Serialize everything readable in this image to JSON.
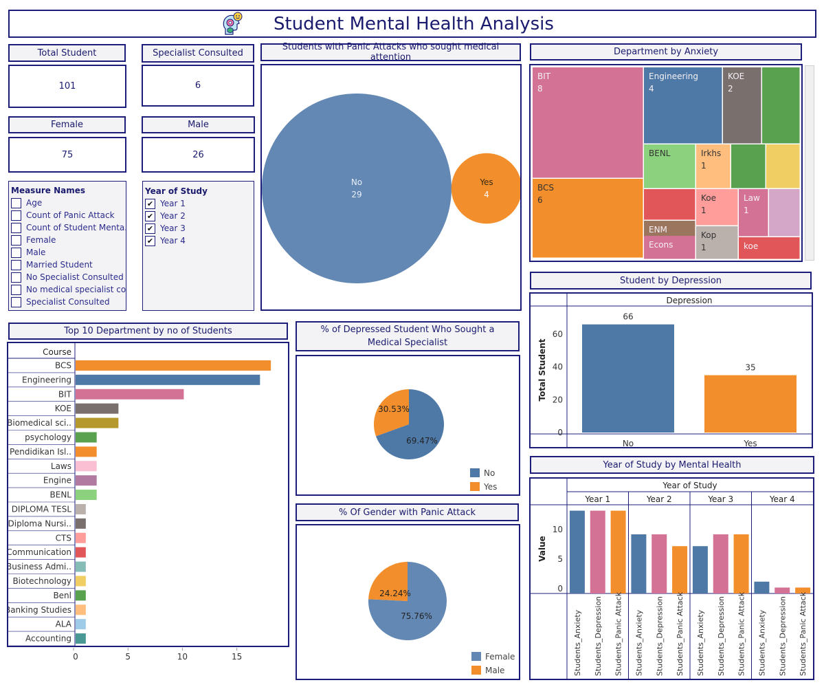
{
  "title": "Student Mental Health Analysis",
  "kpis": {
    "total_student": {
      "label": "Total Student",
      "value": "101"
    },
    "specialist": {
      "label": "Specialist Consulted",
      "value": "6"
    },
    "female": {
      "label": "Female",
      "value": "75"
    },
    "male": {
      "label": "Male",
      "value": "26"
    }
  },
  "measure_filter": {
    "title": "Measure Names",
    "items": [
      {
        "label": "Age",
        "checked": false
      },
      {
        "label": "Count of Panic Attack",
        "checked": false
      },
      {
        "label": "Count of Student Menta..",
        "checked": false
      },
      {
        "label": "Female",
        "checked": false
      },
      {
        "label": "Male",
        "checked": false
      },
      {
        "label": "Married Student",
        "checked": false
      },
      {
        "label": "No Specialist Consulted",
        "checked": false
      },
      {
        "label": "No medical specialist co..",
        "checked": false
      },
      {
        "label": "Specialist Consulted",
        "checked": false
      }
    ]
  },
  "year_filter": {
    "title": "Year of Study",
    "items": [
      {
        "label": "Year 1",
        "checked": true
      },
      {
        "label": "Year 2",
        "checked": true
      },
      {
        "label": "Year 3",
        "checked": true
      },
      {
        "label": "Year 4",
        "checked": true
      }
    ]
  },
  "colors": {
    "blue": "#4e79a7",
    "orange": "#f28e2b",
    "pink": "#d37295",
    "border": "#1c1c7a",
    "title": "#1a1a6e"
  },
  "chart_data": [
    {
      "id": "panic_bubbles",
      "type": "bubble",
      "title": "Students with Panic Attacks who sought medical attention",
      "items": [
        {
          "label": "No",
          "value": 29,
          "color": "#6388b4"
        },
        {
          "label": "Yes",
          "value": 4,
          "color": "#f28e2b"
        }
      ]
    },
    {
      "id": "dept_anxiety",
      "type": "treemap",
      "title": "Department by Anxiety",
      "items": [
        {
          "label": "BIT",
          "value": 8,
          "color": "#d37295"
        },
        {
          "label": "BCS",
          "value": 6,
          "color": "#f28e2b"
        },
        {
          "label": "Engineering",
          "value": 4,
          "color": "#4e79a7"
        },
        {
          "label": "KOE",
          "value": 2,
          "color": "#79706e"
        },
        {
          "label": "",
          "value": null,
          "color": "#59a14f"
        },
        {
          "label": "BENL",
          "value": null,
          "color": "#8cd17d"
        },
        {
          "label": "Irkhs",
          "value": 1,
          "color": "#ffbe7d"
        },
        {
          "label": "",
          "value": null,
          "color": "#59a14f"
        },
        {
          "label": "",
          "value": null,
          "color": "#f1ce63"
        },
        {
          "label": "",
          "value": null,
          "color": "#e15759"
        },
        {
          "label": "ENM",
          "value": null,
          "color": "#9c755f"
        },
        {
          "label": "Koe",
          "value": 1,
          "color": "#ff9d9a"
        },
        {
          "label": "Law",
          "value": 1,
          "color": "#d37295"
        },
        {
          "label": "",
          "value": null,
          "color": "#d4a6c8"
        },
        {
          "label": "Econs",
          "value": null,
          "color": "#d37295"
        },
        {
          "label": "Kop",
          "value": 1,
          "color": "#bab0ac"
        },
        {
          "label": "koe",
          "value": null,
          "color": "#e15759"
        }
      ]
    },
    {
      "id": "depression_bar",
      "type": "bar",
      "title": "Student by Depression",
      "header": "Depression",
      "categories": [
        "No",
        "Yes"
      ],
      "values": [
        66,
        35
      ],
      "colors": [
        "#4e79a7",
        "#f28e2b"
      ],
      "ylabel": "Total Student",
      "yticks": [
        0,
        20,
        40,
        60
      ],
      "ylim": [
        0,
        70
      ]
    },
    {
      "id": "top_dept",
      "type": "bar",
      "orientation": "horizontal",
      "title": "Top 10 Department by no of Students",
      "row_header": "Course",
      "categories": [
        "BCS",
        "Engineering",
        "BIT",
        "KOE",
        "Biomedical sci..",
        "psychology",
        "Pendidikan Isl..",
        "Laws",
        "Engine",
        "BENL",
        "DIPLOMA TESL",
        "Diploma Nursi..",
        "CTS",
        "Communication",
        "Business Admi..",
        "Biotechnology",
        "Benl",
        "Banking Studies",
        "ALA",
        "Accounting"
      ],
      "values": [
        18,
        17,
        10,
        4,
        4,
        2,
        2,
        2,
        2,
        2,
        1,
        1,
        1,
        1,
        1,
        1,
        1,
        1,
        1,
        1
      ],
      "colors": [
        "#f28e2b",
        "#4e79a7",
        "#d37295",
        "#79706e",
        "#b6992d",
        "#59a14f",
        "#f28e2b",
        "#fabfd2",
        "#b07aa1",
        "#8cd17d",
        "#bab0ac",
        "#79706e",
        "#ff9d9a",
        "#e15759",
        "#86bcb6",
        "#f1ce63",
        "#59a14f",
        "#ffbe7d",
        "#a0cbe8",
        "#499894"
      ],
      "xticks": [
        0,
        5,
        10,
        15
      ],
      "xlim": [
        0,
        19
      ]
    },
    {
      "id": "depressed_specialist_pie",
      "type": "pie",
      "title": "% of Depressed Student Who Sought a Medical Specialist",
      "slices": [
        {
          "label": "No",
          "value": 69.47,
          "text": "69.47%",
          "color": "#4e79a7"
        },
        {
          "label": "Yes",
          "value": 30.53,
          "text": "30.53%",
          "color": "#f28e2b"
        }
      ],
      "legend": "bottom-right"
    },
    {
      "id": "gender_panic_pie",
      "type": "pie",
      "title": "% Of Gender with Panic Attack",
      "slices": [
        {
          "label": "Female",
          "value": 75.76,
          "text": "75.76%",
          "color": "#6388b4"
        },
        {
          "label": "Male",
          "value": 24.24,
          "text": "24.24%",
          "color": "#f28e2b"
        }
      ],
      "legend": "bottom-right"
    },
    {
      "id": "year_mental",
      "type": "bar",
      "title": "Year of Study by Mental Health",
      "header": "Year of Study",
      "groups": [
        "Year 1",
        "Year 2",
        "Year 3",
        "Year 4"
      ],
      "measures": [
        "Students_Anxiety",
        "Students_Depression",
        "Students_Panic Attack"
      ],
      "measure_colors": [
        "#4e79a7",
        "#d37295",
        "#f28e2b"
      ],
      "values": [
        [
          14,
          14,
          14
        ],
        [
          10,
          10,
          8
        ],
        [
          8,
          10,
          10
        ],
        [
          2,
          1,
          1
        ]
      ],
      "ylabel": "Value",
      "yticks": [
        0,
        5,
        10
      ],
      "ylim": [
        0,
        15
      ]
    }
  ]
}
